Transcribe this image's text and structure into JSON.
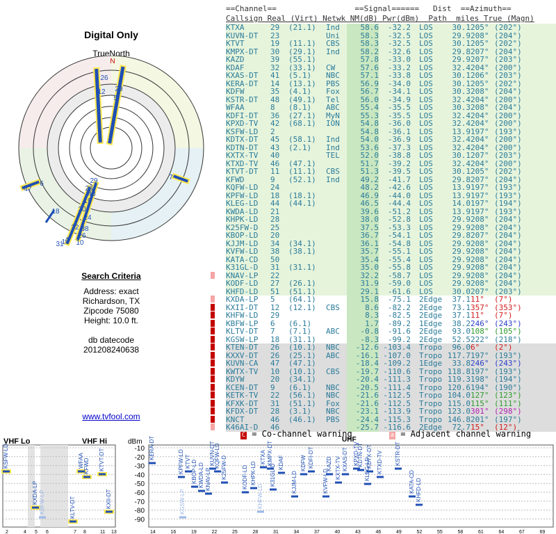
{
  "page": {
    "title": "Digital Only",
    "truenorth": "TrueNorth",
    "north_letter": "N",
    "link": "www.tvfool.com"
  },
  "criteria": {
    "heading": "Search Criteria",
    "address": "Address: exact",
    "city": "Richardson, TX",
    "zip": "Zipcode 75080",
    "height": "Height: 10.0 ft.",
    "db_label": "db datecode",
    "db_value": "201208240638"
  },
  "table": {
    "header1": "==Channel==                 ==Signal======   Dist  ==Azimuth==",
    "header2": "Callsign Real (Virt) Netwk NM(dB) Pwr(dBm)  Path  miles True (Magn)",
    "rows": [
      [
        "KTXA",
        "29",
        "(21.1)",
        "Ind",
        "58.6",
        "-32.2",
        "LOS",
        "30.1",
        "205°",
        "(202°)",
        "",
        ""
      ],
      [
        "KUVN-DT",
        "23",
        "",
        "Uni",
        "58.3",
        "-32.5",
        "LOS",
        "29.9",
        "208°",
        "(204°)",
        "",
        ""
      ],
      [
        "KTVT",
        "19",
        "(11.1)",
        "CBS",
        "58.3",
        "-32.5",
        "LOS",
        "30.1",
        "205°",
        "(202°)",
        "",
        ""
      ],
      [
        "KMPX-DT",
        "30",
        "(29.1)",
        "Ind",
        "58.2",
        "-32.6",
        "LOS",
        "29.8",
        "207°",
        "(204°)",
        "",
        ""
      ],
      [
        "KAZD",
        "39",
        "(55.1)",
        "",
        "57.8",
        "-33.0",
        "LOS",
        "29.9",
        "207°",
        "(203°)",
        "",
        ""
      ],
      [
        "KDAF",
        "32",
        "(33.1)",
        "CW",
        "57.6",
        "-33.2",
        "LOS",
        "32.4",
        "204°",
        "(200°)",
        "",
        ""
      ],
      [
        "KXAS-DT",
        "41",
        "(5.1)",
        "NBC",
        "57.1",
        "-33.8",
        "LOS",
        "30.1",
        "206°",
        "(203°)",
        "",
        ""
      ],
      [
        "KERA-DT",
        "14",
        "(13.1)",
        "PBS",
        "56.9",
        "-34.0",
        "LOS",
        "30.1",
        "205°",
        "(202°)",
        "",
        ""
      ],
      [
        "KDFW",
        "35",
        "(4.1)",
        "Fox",
        "56.7",
        "-34.1",
        "LOS",
        "30.3",
        "208°",
        "(204°)",
        "",
        ""
      ],
      [
        "KSTR-DT",
        "48",
        "(49.1)",
        "Tel",
        "56.0",
        "-34.9",
        "LOS",
        "32.4",
        "204°",
        "(200°)",
        "",
        ""
      ],
      [
        "WFAA",
        "8",
        "(8.1)",
        "ABC",
        "55.4",
        "-35.5",
        "LOS",
        "30.3",
        "208°",
        "(204°)",
        "",
        ""
      ],
      [
        "KDFI-DT",
        "36",
        "(27.1)",
        "MyN",
        "55.3",
        "-35.5",
        "LOS",
        "32.4",
        "204°",
        "(200°)",
        "",
        ""
      ],
      [
        "KPXD-TV",
        "42",
        "(68.1)",
        "ION",
        "54.8",
        "-36.0",
        "LOS",
        "32.4",
        "204°",
        "(200°)",
        "",
        ""
      ],
      [
        "KSFW-LD",
        "2",
        "",
        "",
        "54.8",
        "-36.1",
        "LOS",
        "13.9",
        "197°",
        "(193°)",
        "",
        ""
      ],
      [
        "KDTX-DT",
        "45",
        "(58.1)",
        "Ind",
        "54.0",
        "-36.9",
        "LOS",
        "32.4",
        "204°",
        "(200°)",
        "",
        ""
      ],
      [
        "KDTN-DT",
        "43",
        "(2.1)",
        "Ind",
        "53.6",
        "-37.3",
        "LOS",
        "32.4",
        "204°",
        "(200°)",
        "",
        ""
      ],
      [
        "KXTX-TV",
        "40",
        "",
        "TEL",
        "52.0",
        "-38.8",
        "LOS",
        "30.1",
        "207°",
        "(203°)",
        "",
        ""
      ],
      [
        "KTXD-TV",
        "46",
        "(47.1)",
        "",
        "51.7",
        "-39.2",
        "LOS",
        "32.4",
        "204°",
        "(200°)",
        "",
        ""
      ],
      [
        "KTVT-DT",
        "11",
        "(11.1)",
        "CBS",
        "51.3",
        "-39.5",
        "LOS",
        "30.1",
        "205°",
        "(202°)",
        "",
        ""
      ],
      [
        "KFWD",
        "9",
        "(52.1)",
        "Ind",
        "49.2",
        "-41.7",
        "LOS",
        "29.8",
        "207°",
        "(204°)",
        "",
        ""
      ],
      [
        "KQFW-LD",
        "24",
        "",
        "",
        "48.2",
        "-42.6",
        "LOS",
        "13.9",
        "197°",
        "(193°)",
        "",
        ""
      ],
      [
        "KPFW-LD",
        "18",
        "(18.1)",
        "",
        "46.9",
        "-44.0",
        "LOS",
        "13.9",
        "197°",
        "(193°)",
        "",
        ""
      ],
      [
        "KLEG-LD",
        "44",
        "(44.1)",
        "",
        "46.5",
        "-44.4",
        "LOS",
        "14.0",
        "197°",
        "(194°)",
        "",
        ""
      ],
      [
        "KWDA-LD",
        "21",
        "",
        "",
        "39.6",
        "-51.2",
        "LOS",
        "13.9",
        "197°",
        "(193°)",
        "",
        ""
      ],
      [
        "KHPK-LD",
        "28",
        "",
        "",
        "38.0",
        "-52.8",
        "LOS",
        "29.9",
        "208°",
        "(204°)",
        "",
        ""
      ],
      [
        "K25FW-D",
        "25",
        "",
        "",
        "37.5",
        "-53.3",
        "LOS",
        "29.9",
        "208°",
        "(204°)",
        "",
        ""
      ],
      [
        "KBOP-LD",
        "20",
        "",
        "",
        "36.7",
        "-54.1",
        "LOS",
        "29.8",
        "207°",
        "(204°)",
        "",
        ""
      ],
      [
        "KJJM-LD",
        "34",
        "(34.1)",
        "",
        "36.1",
        "-54.8",
        "LOS",
        "29.9",
        "208°",
        "(204°)",
        "",
        ""
      ],
      [
        "KVFW-LD",
        "38",
        "(38.1)",
        "",
        "35.7",
        "-55.1",
        "LOS",
        "29.9",
        "208°",
        "(204°)",
        "",
        ""
      ],
      [
        "KATA-CD",
        "50",
        "",
        "",
        "35.4",
        "-55.4",
        "LOS",
        "29.9",
        "208°",
        "(204°)",
        "",
        ""
      ],
      [
        "K31GL-D",
        "31",
        "(31.1)",
        "",
        "35.0",
        "-55.8",
        "LOS",
        "29.9",
        "208°",
        "(204°)",
        "",
        ""
      ],
      [
        "KNAV-LP",
        "22",
        "",
        "",
        "32.2",
        "-58.7",
        "LOS",
        "29.9",
        "208°",
        "(204°)",
        "a",
        ""
      ],
      [
        "KODF-LD",
        "27",
        "(26.1)",
        "",
        "31.9",
        "-59.0",
        "LOS",
        "29.9",
        "208°",
        "(204°)",
        "",
        ""
      ],
      [
        "KHFD-LD",
        "51",
        "(51.1)",
        "",
        "29.1",
        "-61.6",
        "LOS",
        "30.0",
        "207°",
        "(203°)",
        "",
        ""
      ],
      [
        "KXDA-LP",
        "5",
        "(64.1)",
        "",
        "15.8",
        "-75.1",
        "2Edge",
        "37.1",
        "11°",
        "(7°)",
        "a",
        "red"
      ],
      [
        "KXII-DT",
        "12",
        "(12.1)",
        "CBS",
        "8.6",
        "-82.2",
        "2Edge",
        "73.1",
        "357°",
        "(353°)",
        "c",
        "red"
      ],
      [
        "KHFW-LD",
        "29",
        "",
        "",
        "8.3",
        "-82.5",
        "2Edge",
        "37.1",
        "11°",
        "(7°)",
        "c",
        "red"
      ],
      [
        "KBFW-LP",
        "6",
        "(6.1)",
        "",
        "1.7",
        "-89.2",
        "1Edge",
        "38.2",
        "246°",
        "(243°)",
        "c",
        "blue"
      ],
      [
        "KLTV-DT",
        "7",
        "(7.1)",
        "ABC",
        "-0.8",
        "-91.6",
        "2Edge",
        "93.0",
        "108°",
        "(105°)",
        "c",
        "green"
      ],
      [
        "KGSW-LP",
        "18",
        "(31.1)",
        "",
        "-8.3",
        "-99.2",
        "2Edge",
        "52.5",
        "222°",
        "(218°)",
        "c",
        ""
      ],
      [
        "KTEN-DT",
        "26",
        "(10.1)",
        "NBC",
        "-12.6",
        "-103.4",
        "Tropo",
        "96.0",
        "6°",
        "(2°)",
        "c",
        "red"
      ],
      [
        "KXXV-DT",
        "26",
        "(25.1)",
        "ABC",
        "-16.1",
        "-107.0",
        "Tropo",
        "117.7",
        "197°",
        "(193°)",
        "c",
        ""
      ],
      [
        "KUVN-CA",
        "47",
        "(47.1)",
        "",
        "-18.4",
        "-109.2",
        "1Edge",
        "33.8",
        "246°",
        "(243°)",
        "c",
        "blue"
      ],
      [
        "KWTX-TV",
        "10",
        "(10.1)",
        "CBS",
        "-19.7",
        "-110.6",
        "Tropo",
        "118.8",
        "197°",
        "(193°)",
        "c",
        ""
      ],
      [
        "KDYW",
        "20",
        "(34.1)",
        "",
        "-20.4",
        "-111.3",
        "Tropo",
        "119.3",
        "198°",
        "(194°)",
        "c",
        ""
      ],
      [
        "KCEN-DT",
        "9",
        "(6.1)",
        "NBC",
        "-20.5",
        "-111.4",
        "Tropo",
        "120.6",
        "194°",
        "(190°)",
        "c",
        ""
      ],
      [
        "KETK-TV",
        "22",
        "(56.1)",
        "NBC",
        "-21.6",
        "-112.5",
        "Tropo",
        "104.0",
        "127°",
        "(123°)",
        "c",
        "green"
      ],
      [
        "KFXK-DT",
        "31",
        "(51.1)",
        "Fox",
        "-21.6",
        "-112.5",
        "Tropo",
        "115.0",
        "115°",
        "(111°)",
        "c",
        "green"
      ],
      [
        "KFDX-DT",
        "28",
        "(3.1)",
        "NBC",
        "-23.1",
        "-113.9",
        "Tropo",
        "123.0",
        "301°",
        "(298°)",
        "c",
        "magenta"
      ],
      [
        "KNCT",
        "46",
        "(46.1)",
        "PBS",
        "-24.4",
        "-115.3",
        "Tropo",
        "146.8",
        "201°",
        "(197°)",
        "c",
        ""
      ],
      [
        "K46AI-D",
        "46",
        "",
        "",
        "-25.7",
        "-116.6",
        "2Edge",
        "72.7",
        "15°",
        "(12°)",
        "a",
        "red"
      ]
    ]
  },
  "legend": {
    "cochannel": "= Co-channel warning",
    "adjacent": "= Adjacent channel warning",
    "cc_mark": "C",
    "ac_mark": "a"
  },
  "spectrum": {
    "vhf_lo": "VHF Lo",
    "vhf_hi": "VHF Hi",
    "unit": "dBm",
    "uhf": "UHF",
    "db_ticks": [
      "-10",
      "-20",
      "-30",
      "-40",
      "-50",
      "-60",
      "-70",
      "-80",
      "-90"
    ],
    "vlo_channels": [
      "2",
      "4",
      "5",
      "6"
    ],
    "vhi_channels": [
      "7",
      "8",
      "11",
      "13"
    ],
    "uhf_channels": [
      "14",
      "16",
      "19",
      "22",
      "25",
      "28",
      "31",
      "34",
      "37",
      "40",
      "43",
      "46",
      "49",
      "52",
      "55",
      "58",
      "61",
      "64",
      "67",
      "69"
    ],
    "vhf_stations": [
      "KSFW-LD",
      "KXDA-LP",
      "KBFW-LP",
      "WFAA",
      "KFWD",
      "KTVT-DT",
      "KLTV-DT",
      "KXII-DT"
    ],
    "uhf_stations": [
      "KERA-DT",
      "KPFW-LD",
      "KTVT",
      "KBOP-LD",
      "KWDA-LD",
      "KNAV-LP",
      "KUVN-DT",
      "KQFW-LD",
      "K25FW-D",
      "KODF-LD",
      "KHPK-LD",
      "KTXA",
      "KMPX-DT",
      "K31GL-D",
      "KDAF",
      "KJJM-LD",
      "KDFW",
      "KDFI-DT",
      "KVFW-LD",
      "KAZD",
      "KXTX-TV",
      "KXAS-DT",
      "KPXD-TV",
      "KDTN-DT",
      "KLEG-LD",
      "KDTX-DT",
      "KTXD-TV",
      "KSTR-DT",
      "KATA-CD",
      "KHFD-LD",
      "KGSW-LP",
      "KHFW-LD"
    ]
  }
}
